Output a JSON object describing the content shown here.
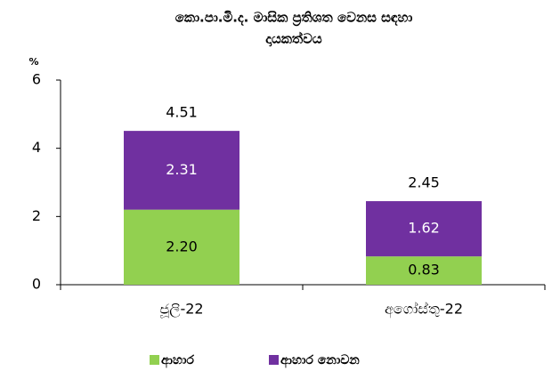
{
  "chart_data": {
    "type": "stacked_bar",
    "title": [
      "කො.පා.මි.ද. මාසික ප්‍රතිශත වෙනස සඳහා",
      "දායකත්වය"
    ],
    "y_label": "%",
    "categories": [
      "ජූලි-22",
      "අගෝස්තු-22"
    ],
    "series": [
      {
        "name": "ආහාර",
        "color": "#92d050",
        "label_color": "#000000",
        "values": [
          2.2,
          0.83
        ],
        "value_labels": [
          "2.20",
          "0.83"
        ]
      },
      {
        "name": "ආහාර නොවන",
        "color": "#7030a0",
        "label_color": "#ffffff",
        "values": [
          2.31,
          1.62
        ],
        "value_labels": [
          "2.31",
          "1.62"
        ]
      }
    ],
    "totals": [
      4.51,
      2.45
    ],
    "ylim": [
      0,
      6
    ],
    "yticks": [
      0,
      2,
      4,
      6
    ],
    "grid": false
  }
}
